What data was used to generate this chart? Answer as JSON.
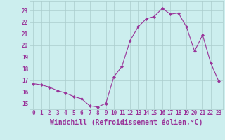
{
  "x": [
    0,
    1,
    2,
    3,
    4,
    5,
    6,
    7,
    8,
    9,
    10,
    11,
    12,
    13,
    14,
    15,
    16,
    17,
    18,
    19,
    20,
    21,
    22,
    23
  ],
  "y": [
    16.7,
    16.6,
    16.4,
    16.1,
    15.9,
    15.6,
    15.4,
    14.8,
    14.7,
    15.0,
    17.3,
    18.2,
    20.4,
    21.6,
    22.3,
    22.5,
    23.2,
    22.7,
    22.8,
    21.6,
    19.5,
    20.9,
    18.5,
    16.9
  ],
  "line_color": "#993399",
  "marker": "D",
  "marker_size": 2.0,
  "bg_color": "#cceeee",
  "grid_color": "#aacccc",
  "xlabel": "Windchill (Refroidissement éolien,°C)",
  "tick_color": "#993399",
  "label_color": "#993399",
  "ylim_min": 14.5,
  "ylim_max": 23.8,
  "xlim_min": -0.5,
  "xlim_max": 23.5,
  "yticks": [
    15,
    16,
    17,
    18,
    19,
    20,
    21,
    22,
    23
  ],
  "xticks": [
    0,
    1,
    2,
    3,
    4,
    5,
    6,
    7,
    8,
    9,
    10,
    11,
    12,
    13,
    14,
    15,
    16,
    17,
    18,
    19,
    20,
    21,
    22,
    23
  ],
  "tick_fontsize": 5.5,
  "xlabel_fontsize": 7.0,
  "xlabel_fontweight": "bold"
}
